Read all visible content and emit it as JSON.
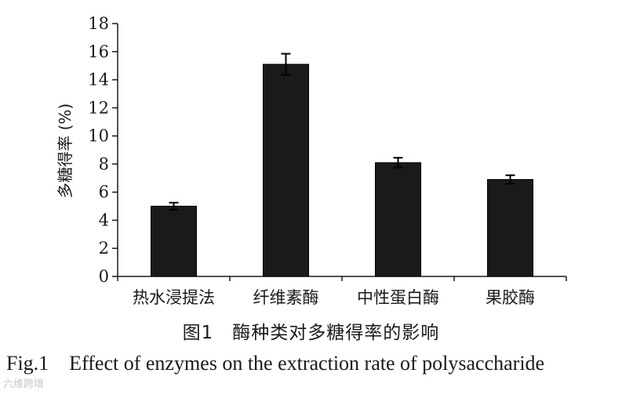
{
  "chart_data": {
    "type": "bar",
    "title": "",
    "xlabel": "",
    "ylabel": "多糖得率 (%)",
    "ylim": [
      0,
      18
    ],
    "yticks": [
      0,
      2,
      4,
      6,
      8,
      10,
      12,
      14,
      16,
      18
    ],
    "categories": [
      "热水浸提法",
      "纤维素酶",
      "中性蛋白酶",
      "果胶酶"
    ],
    "values": [
      5.0,
      15.1,
      8.1,
      6.9
    ],
    "errors": [
      0.25,
      0.75,
      0.35,
      0.3
    ],
    "bar_color": "#1a1a1a",
    "grid": false
  },
  "caption_cn": "图1　酶种类对多糖得率的影响",
  "caption_en": "Fig.1    Effect of enzymes on the extraction rate of polysaccharide",
  "watermark": "六维跨境"
}
